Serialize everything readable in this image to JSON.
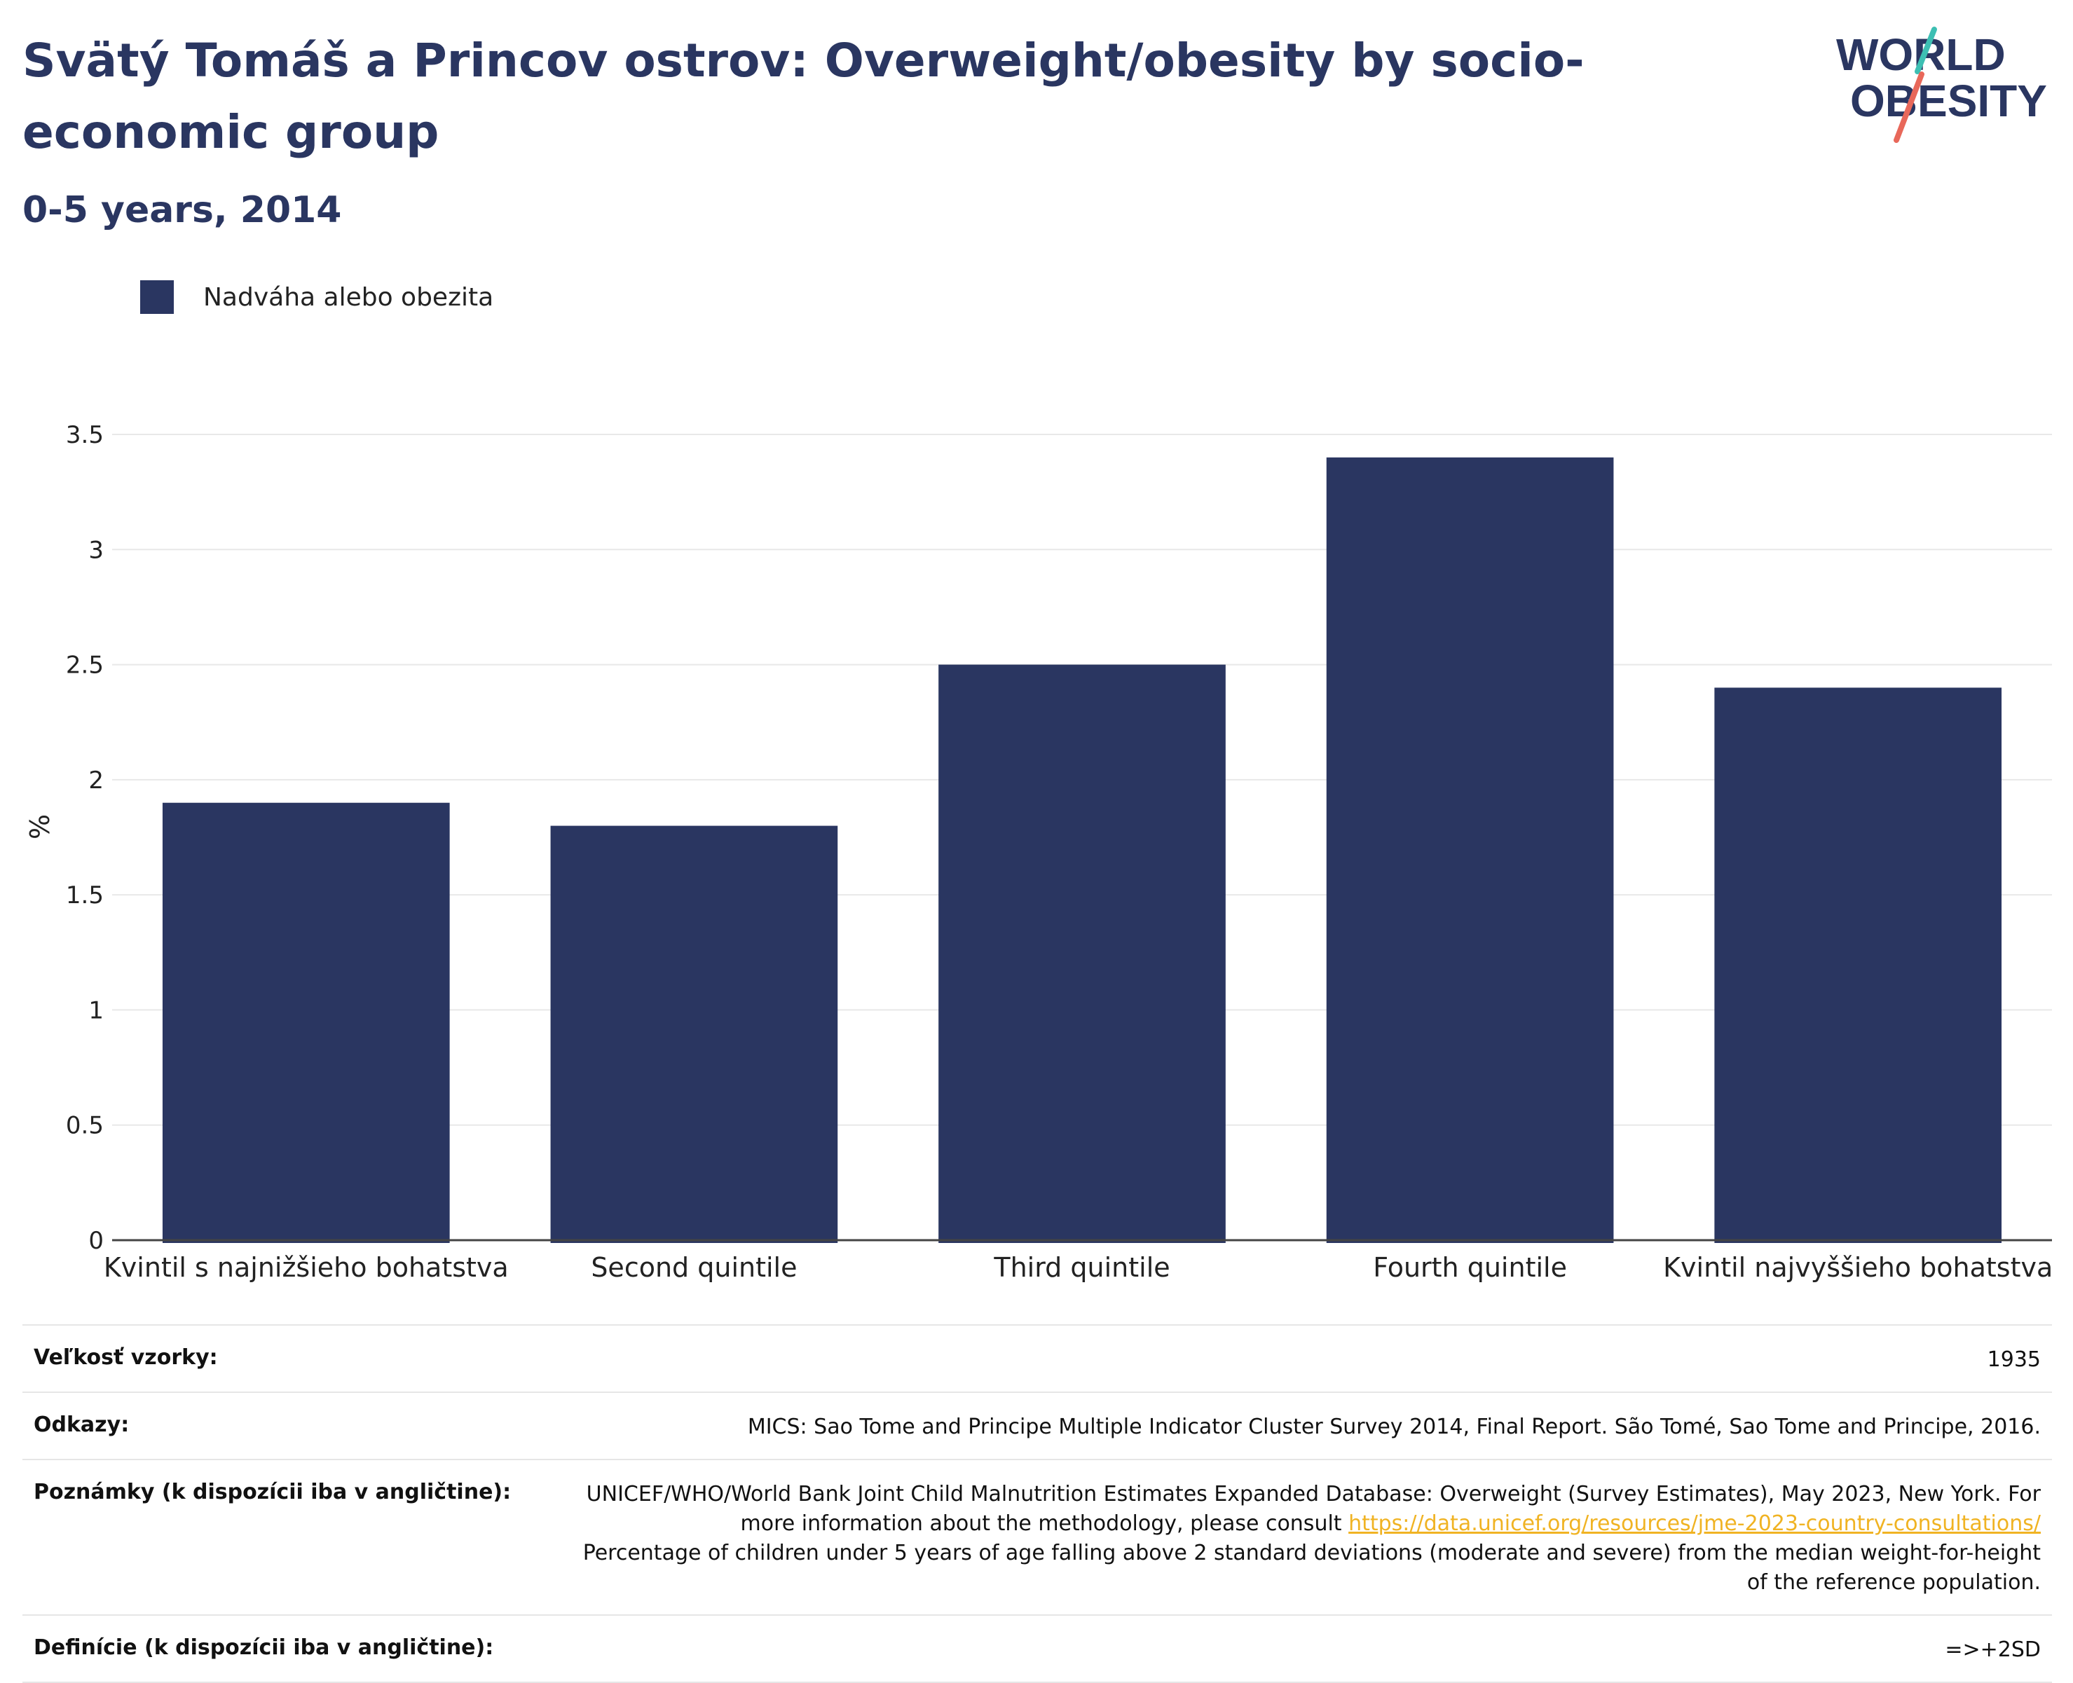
{
  "header": {
    "title": "Svätý Tomáš a Princov ostrov: Overweight/obesity by socio-economic group",
    "subtitle": "0-5 years, 2014"
  },
  "logo": {
    "line1": "WORLD",
    "line2": "OBESITY"
  },
  "legend": {
    "label": "Nadváha alebo obezita"
  },
  "colors": {
    "bar": "#2a3661",
    "title": "#2a3661",
    "grid": "#e8e8e8",
    "link": "#f0b323",
    "logo_teal": "#3dbfb3",
    "logo_coral": "#e8685a"
  },
  "chart_data": {
    "type": "bar",
    "categories": [
      "Kvintil s najnižšieho bohatstva",
      "Second quintile",
      "Third quintile",
      "Fourth quintile",
      "Kvintil najvyššieho bohatstva"
    ],
    "series": [
      {
        "name": "Nadváha alebo obezita",
        "values": [
          1.9,
          1.8,
          2.5,
          3.4,
          2.4
        ]
      }
    ],
    "ylabel": "%",
    "ylim": [
      0,
      3.5
    ],
    "yticks": [
      "0",
      "0.5",
      "1",
      "1.5",
      "2",
      "2.5",
      "3",
      "3.5"
    ],
    "grid": true,
    "legend_position": "top-left"
  },
  "meta": {
    "sample_size_label": "Veľkosť vzorky:",
    "sample_size_value": "1935",
    "references_label": "Odkazy:",
    "references_value": "MICS: Sao Tome and Principe Multiple Indicator Cluster Survey 2014, Final Report. São Tomé, Sao Tome and Principe, 2016.",
    "notes_label": "Poznámky (k dispozícii iba v angličtine):",
    "notes_text_1": "UNICEF/WHO/World Bank Joint Child Malnutrition Estimates Expanded Database: Overweight (Survey Estimates), May 2023, New York. For more information about the methodology, please consult ",
    "notes_link": "https://data.unicef.org/resources/jme-2023-country-consultations/",
    "notes_text_2": "Percentage of children under 5 years of age falling above 2 standard deviations (moderate and severe) from the median weight-for-height of the reference population.",
    "definitions_label": "Definície (k dispozícii iba v angličtine):",
    "definitions_value": "=>+2SD"
  }
}
